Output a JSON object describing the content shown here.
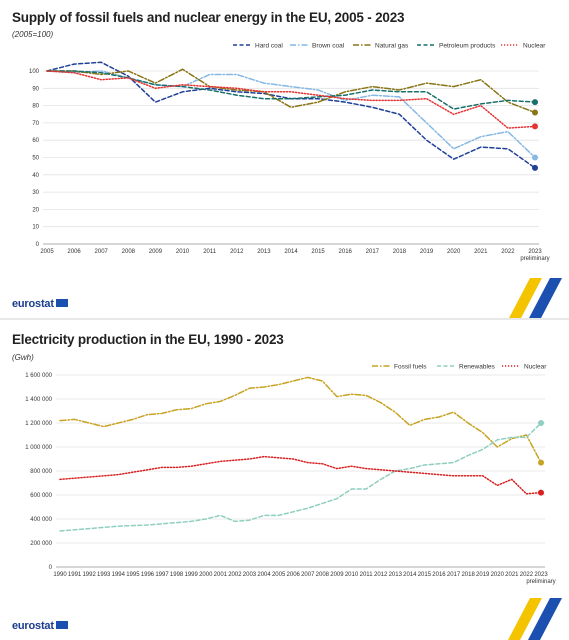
{
  "charts": [
    {
      "title": "Supply of fossil fuels and nuclear energy in the EU, 2005 - 2023",
      "subtitle": "(2005=100)",
      "logo": "eurostat",
      "chart_data": {
        "type": "line",
        "x": [
          "2005",
          "2006",
          "2007",
          "2008",
          "2009",
          "2010",
          "2011",
          "2012",
          "2013",
          "2014",
          "2015",
          "2016",
          "2017",
          "2018",
          "2019",
          "2020",
          "2021",
          "2022",
          "2023"
        ],
        "x_sublabel": {
          "2023": "preliminary"
        },
        "ylim": [
          0,
          100
        ],
        "yticks": [
          0,
          10,
          20,
          30,
          40,
          50,
          60,
          70,
          80,
          90,
          100
        ],
        "grid": true,
        "legend_position": "top-right",
        "series": [
          {
            "name": "Hard coal",
            "color": "#1f3f99",
            "dash": "dashed",
            "values": [
              100,
              104,
              105,
              97,
              82,
              88,
              90,
              88,
              87,
              84,
              84,
              82,
              79,
              75,
              60,
              49,
              56,
              55,
              44
            ]
          },
          {
            "name": "Brown coal",
            "color": "#86b8e4",
            "dash": "dashdot",
            "values": [
              100,
              99,
              100,
              96,
              92,
              91,
              98,
              98,
              93,
              91,
              89,
              83,
              86,
              85,
              70,
              55,
              62,
              65,
              50
            ]
          },
          {
            "name": "Natural gas",
            "color": "#8a7516",
            "dash": "dashdot",
            "values": [
              100,
              100,
              98,
              100,
              93,
              101,
              91,
              89,
              88,
              79,
              82,
              88,
              91,
              89,
              93,
              91,
              95,
              82,
              76
            ]
          },
          {
            "name": "Petroleum products",
            "color": "#16706b",
            "dash": "dashed",
            "values": [
              100,
              100,
              99,
              96,
              92,
              91,
              89,
              86,
              84,
              84,
              85,
              86,
              89,
              88,
              88,
              78,
              81,
              83,
              82
            ]
          },
          {
            "name": "Nuclear",
            "color": "#e63232",
            "dash": "dotted",
            "values": [
              100,
              99,
              95,
              96,
              90,
              92,
              91,
              90,
              88,
              88,
              86,
              84,
              83,
              83,
              84,
              75,
              80,
              67,
              68
            ]
          }
        ]
      }
    },
    {
      "title": "Electricity production in the EU, 1990 - 2023",
      "subtitle": "(Gwh)",
      "logo": "eurostat",
      "chart_data": {
        "type": "line",
        "x": [
          "1990",
          "1991",
          "1992",
          "1993",
          "1994",
          "1995",
          "1996",
          "1997",
          "1998",
          "1999",
          "2000",
          "2001",
          "2002",
          "2003",
          "2004",
          "2005",
          "2006",
          "2007",
          "2008",
          "2009",
          "2010",
          "2011",
          "2012",
          "2013",
          "2014",
          "2015",
          "2016",
          "2017",
          "2018",
          "2019",
          "2020",
          "2021",
          "2022",
          "2023"
        ],
        "x_sublabel": {
          "2023": "preliminary"
        },
        "ylim": [
          0,
          1600000
        ],
        "yticks": [
          0,
          200000,
          400000,
          600000,
          800000,
          1000000,
          1200000,
          1400000,
          1600000
        ],
        "ytick_labels": [
          "0",
          "200 000",
          "400 000",
          "600 000",
          "800 000",
          "1 000 000",
          "1 200 000",
          "1 400 000",
          "1 600 000"
        ],
        "grid": true,
        "legend_position": "top-right",
        "series": [
          {
            "name": "Fossil fuels",
            "color": "#c7a321",
            "dash": "dashdot",
            "values": [
              1220000,
              1230000,
              1200000,
              1170000,
              1200000,
              1230000,
              1270000,
              1280000,
              1310000,
              1320000,
              1360000,
              1380000,
              1430000,
              1490000,
              1500000,
              1520000,
              1550000,
              1580000,
              1550000,
              1420000,
              1440000,
              1430000,
              1370000,
              1290000,
              1180000,
              1230000,
              1250000,
              1290000,
              1200000,
              1120000,
              1000000,
              1070000,
              1100000,
              870000
            ]
          },
          {
            "name": "Renewables",
            "color": "#8fcfc0",
            "dash": "dashed",
            "values": [
              300000,
              310000,
              320000,
              330000,
              340000,
              345000,
              350000,
              360000,
              370000,
              380000,
              400000,
              430000,
              380000,
              390000,
              430000,
              430000,
              460000,
              490000,
              530000,
              570000,
              650000,
              650000,
              730000,
              800000,
              820000,
              850000,
              860000,
              870000,
              930000,
              980000,
              1060000,
              1080000,
              1080000,
              1200000
            ]
          },
          {
            "name": "Nuclear",
            "color": "#d92020",
            "dash": "dotted",
            "values": [
              730000,
              740000,
              750000,
              760000,
              770000,
              790000,
              810000,
              830000,
              830000,
              840000,
              860000,
              880000,
              890000,
              900000,
              920000,
              910000,
              900000,
              870000,
              860000,
              820000,
              840000,
              820000,
              810000,
              800000,
              790000,
              780000,
              770000,
              760000,
              760000,
              760000,
              680000,
              730000,
              610000,
              620000
            ]
          }
        ]
      }
    }
  ]
}
